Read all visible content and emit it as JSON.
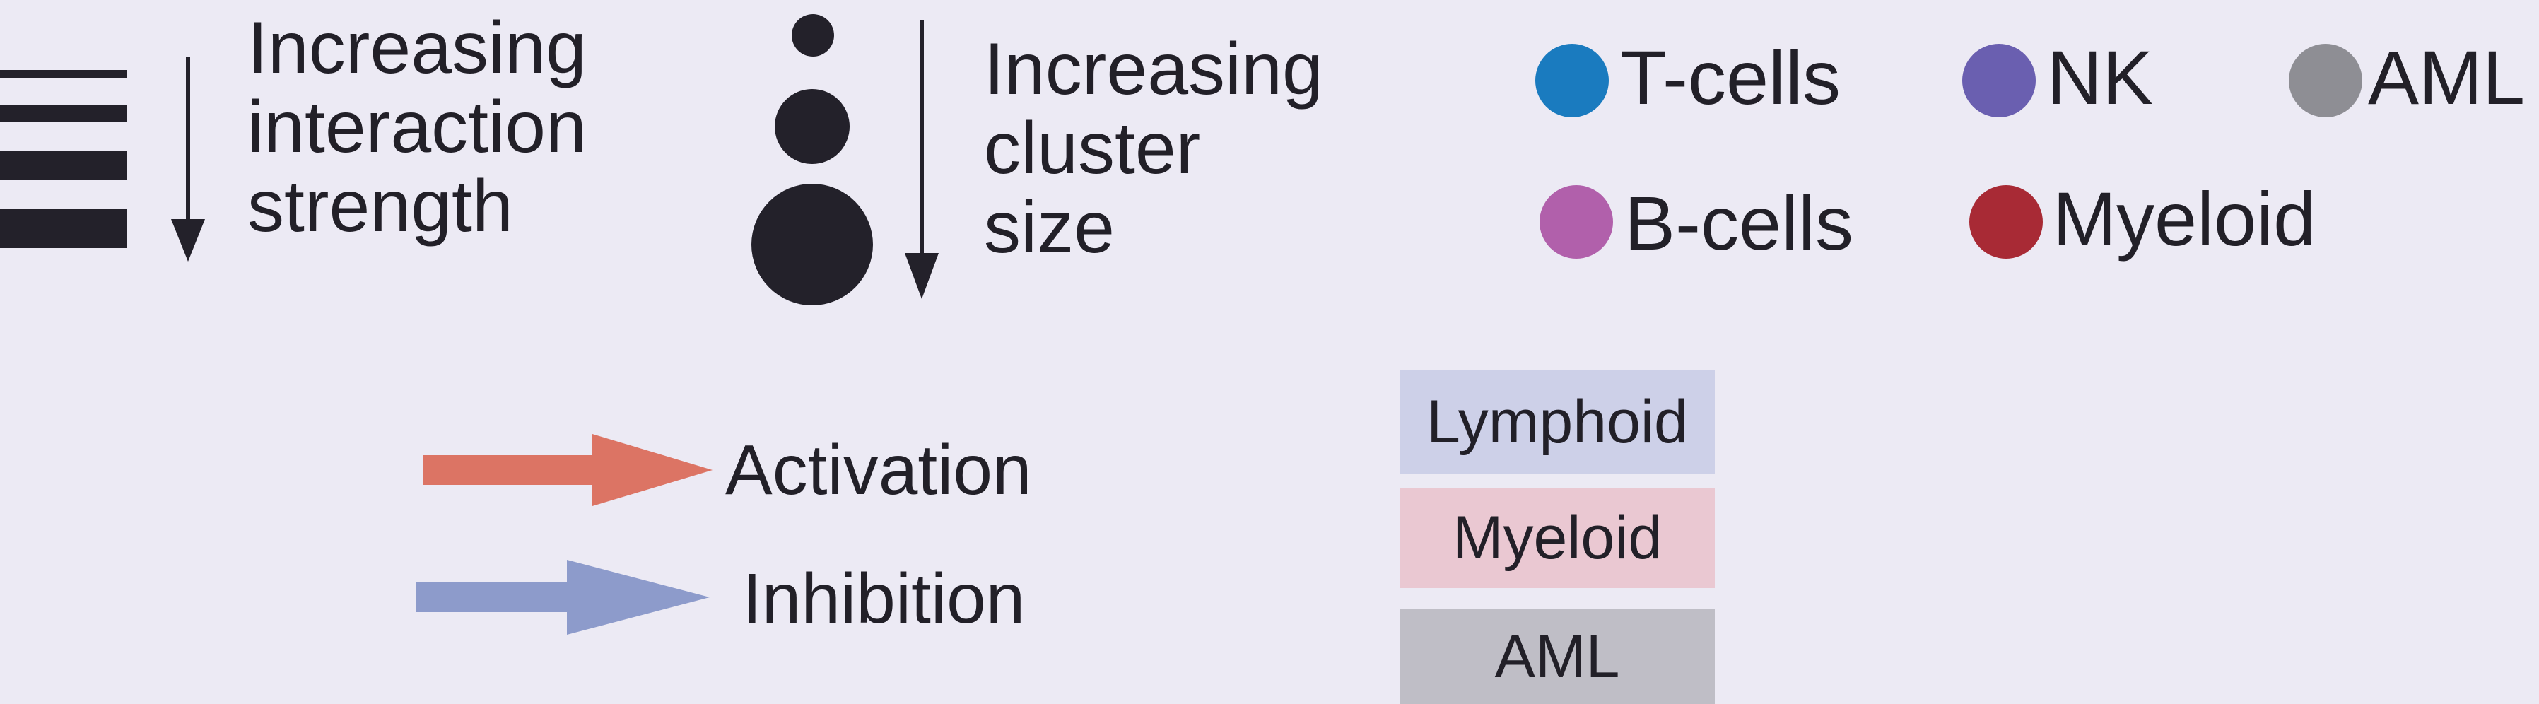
{
  "strength_legend": {
    "text": "Increasing\ninteraction\nstrength"
  },
  "size_legend": {
    "text": "Increasing\ncluster\nsize"
  },
  "cell_types": [
    {
      "label": "T-cells",
      "color": "#1a7bbf"
    },
    {
      "label": "NK",
      "color": "#6a5fb0"
    },
    {
      "label": "AML",
      "color": "#8e8e94"
    },
    {
      "label": "B-cells",
      "color": "#b160ab"
    },
    {
      "label": "Myeloid",
      "color": "#a82a35"
    }
  ],
  "arrows": [
    {
      "label": "Activation",
      "color": "#dc7464"
    },
    {
      "label": "Inhibition",
      "color": "#8d9bcb"
    }
  ],
  "boxes": [
    {
      "label": "Lymphoid",
      "color": "#cdd0e8"
    },
    {
      "label": "Myeloid",
      "color": "#eac8d2"
    },
    {
      "label": "AML",
      "color": "#bfbec6"
    }
  ]
}
